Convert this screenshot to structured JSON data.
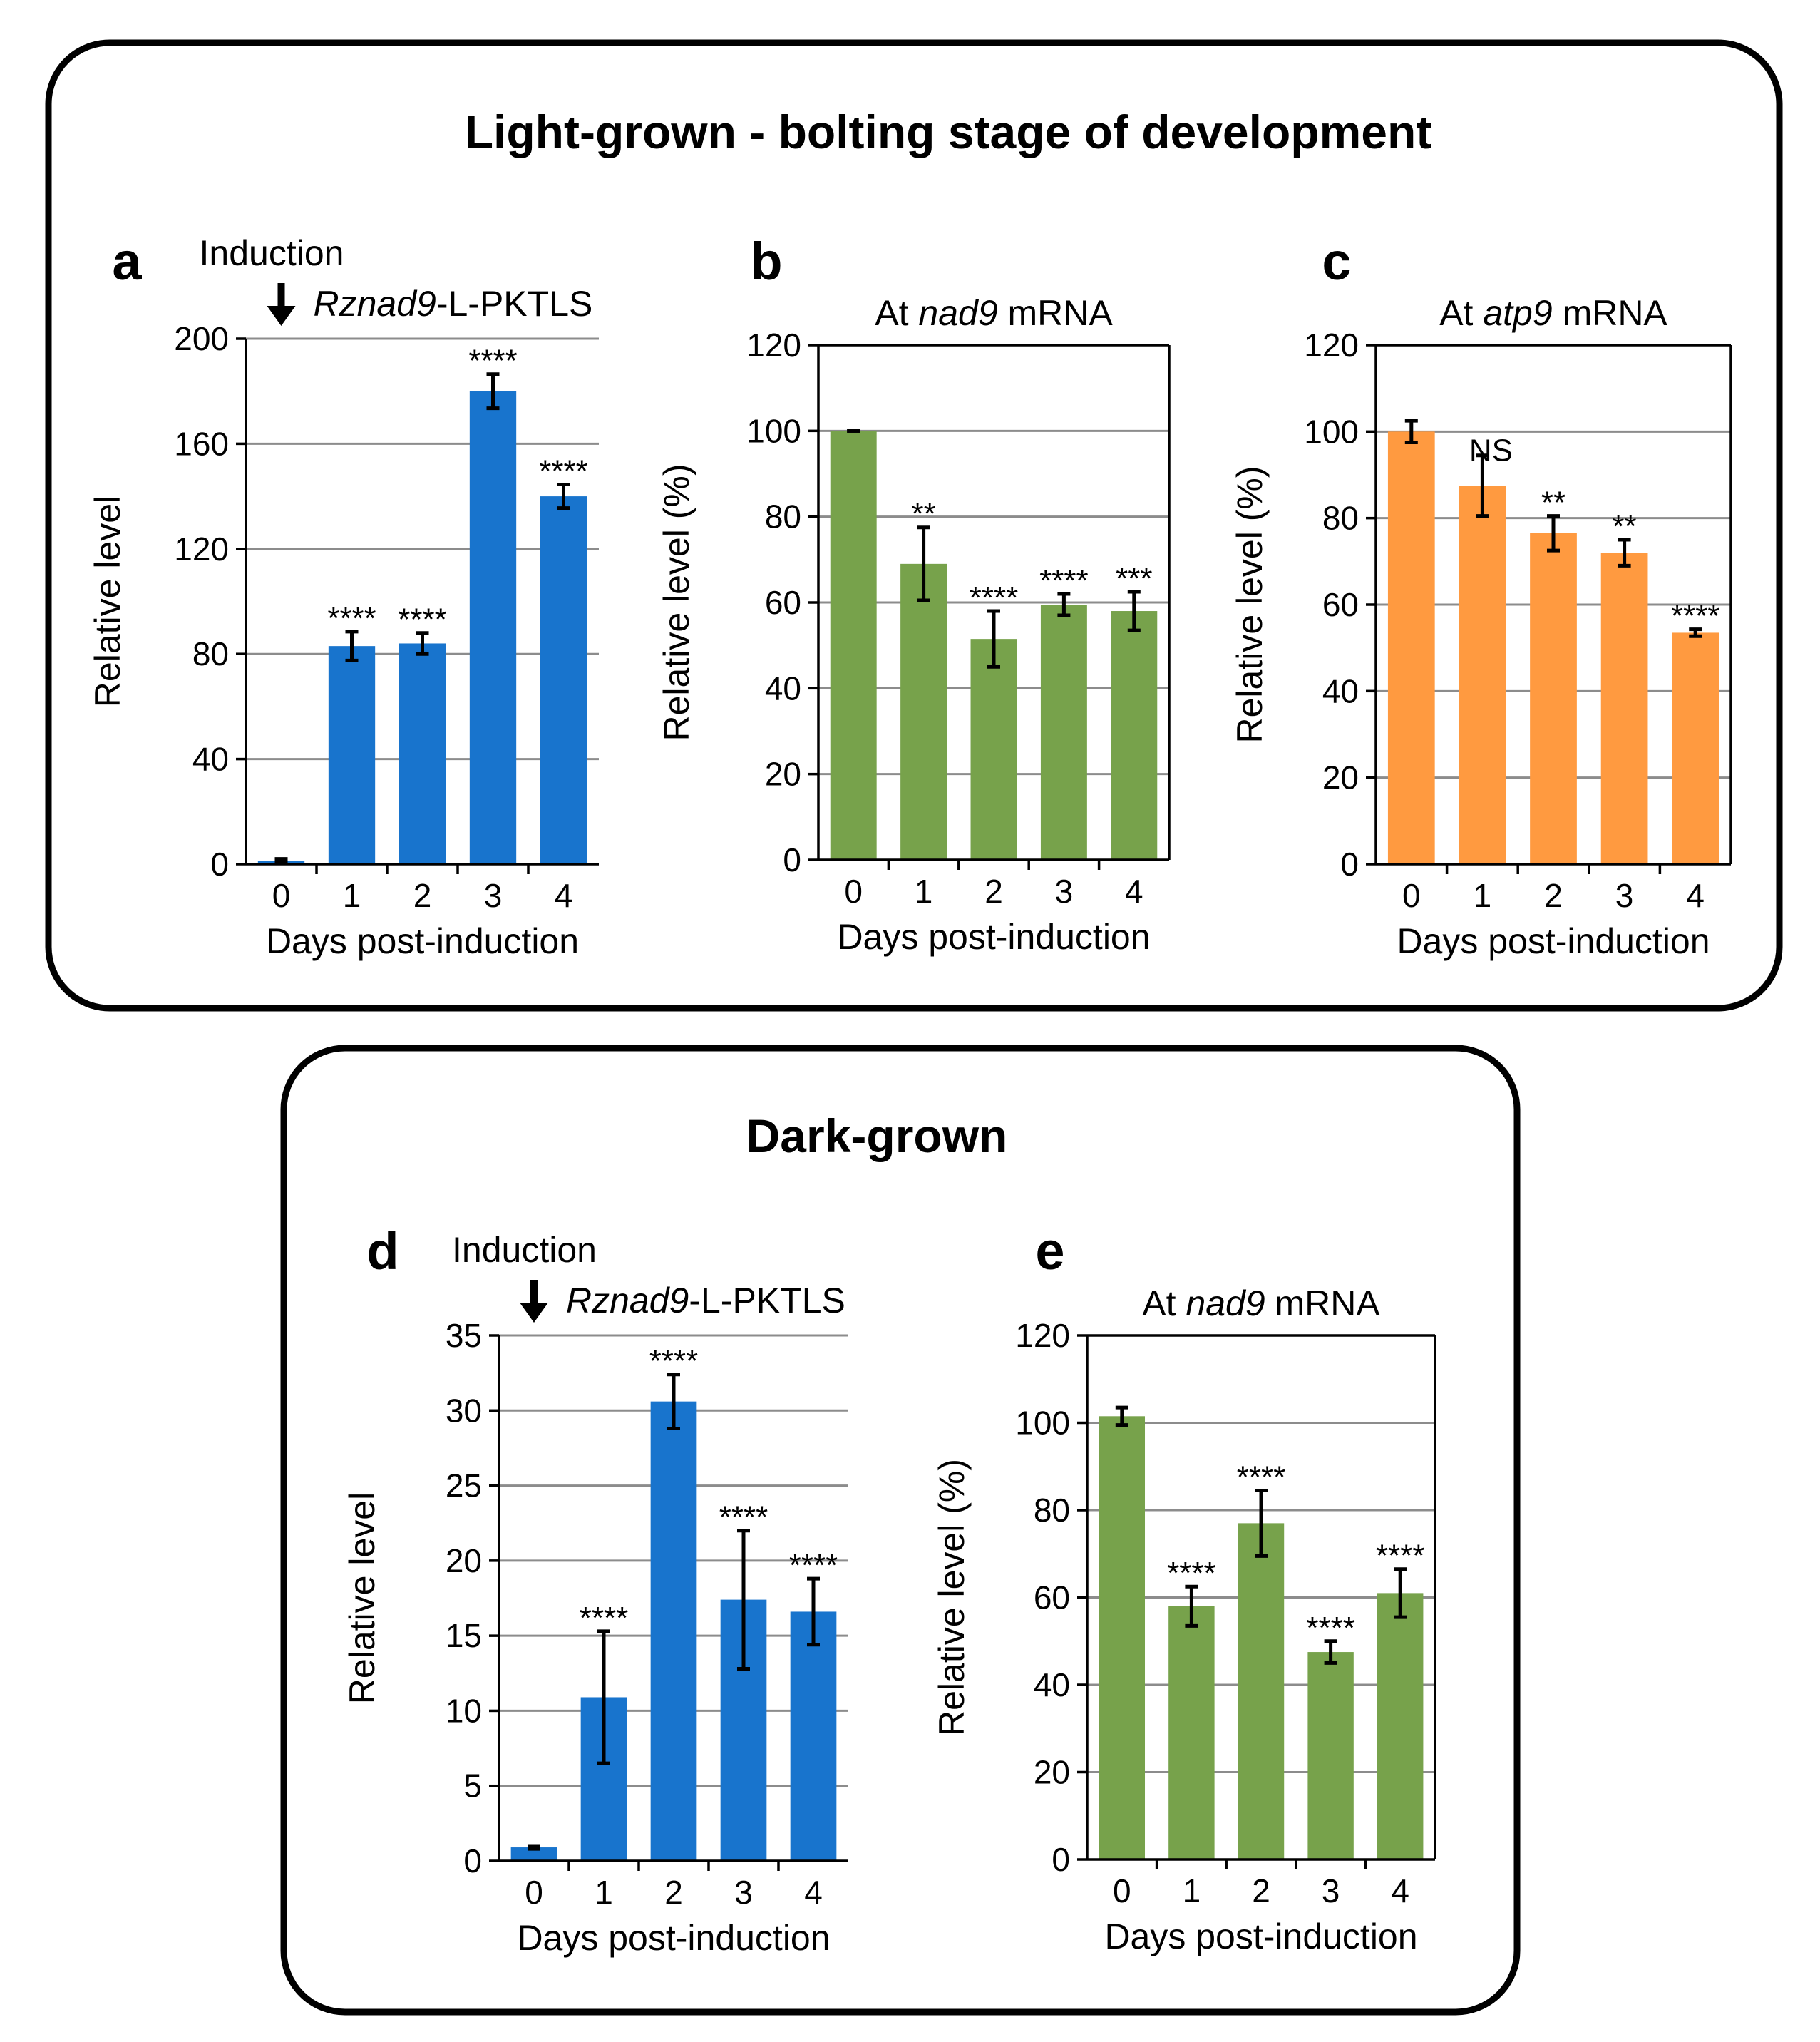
{
  "sections": {
    "light": {
      "title": "Light-grown - bolting stage of development"
    },
    "dark": {
      "title": "Dark-grown"
    }
  },
  "colors": {
    "blue": "#1874CD",
    "green": "#77A24B",
    "orange": "#FF9A40"
  },
  "chart_data": [
    {
      "id": "a",
      "type": "bar",
      "panel_letter": "a",
      "section": "light",
      "title": "",
      "annotation": {
        "text": "Induction",
        "construct_italic": "Rznad9",
        "construct_suffix": "-L-PKTLS",
        "arrow_at_category": "0"
      },
      "xlabel": "Days post-induction",
      "ylabel": "Relative level",
      "categories": [
        "0",
        "1",
        "2",
        "3",
        "4"
      ],
      "values": [
        1.2,
        83,
        84,
        180,
        140
      ],
      "errors": [
        0.8,
        5.5,
        4,
        6.5,
        4.5
      ],
      "significance": [
        "",
        "****",
        "****",
        "****",
        "****"
      ],
      "ylim": [
        0,
        200
      ],
      "yticks": [
        0,
        40,
        80,
        120,
        160,
        200
      ],
      "color": "blue"
    },
    {
      "id": "b",
      "type": "bar",
      "panel_letter": "b",
      "section": "light",
      "title": "At nad9 mRNA",
      "title_pre": "At ",
      "title_italic": "nad9",
      "title_post": " mRNA",
      "xlabel": "Days post-induction",
      "ylabel": "Relative level (%)",
      "categories": [
        "0",
        "1",
        "2",
        "3",
        "4"
      ],
      "values": [
        100,
        69,
        51.5,
        59.5,
        58
      ],
      "errors": [
        0,
        8.5,
        6.5,
        2.5,
        4.5
      ],
      "significance": [
        "",
        "**",
        "****",
        "****",
        "***"
      ],
      "ylim": [
        0,
        120
      ],
      "yticks": [
        0,
        20,
        40,
        60,
        80,
        100,
        120
      ],
      "color": "green"
    },
    {
      "id": "c",
      "type": "bar",
      "panel_letter": "c",
      "section": "light",
      "title": "At atp9 mRNA",
      "title_pre": "At ",
      "title_italic": "atp9",
      "title_post": " mRNA",
      "xlabel": "Days post-induction",
      "ylabel": "Relative level (%)",
      "categories": [
        "0",
        "1",
        "2",
        "3",
        "4"
      ],
      "values": [
        100,
        87.5,
        76.5,
        72,
        53.5
      ],
      "errors": [
        2.5,
        7,
        4,
        3,
        0.8
      ],
      "significance": [
        "",
        "NS",
        "**",
        "**",
        "****"
      ],
      "ylim": [
        0,
        120
      ],
      "yticks": [
        0,
        20,
        40,
        60,
        80,
        100,
        120
      ],
      "color": "orange"
    },
    {
      "id": "d",
      "type": "bar",
      "panel_letter": "d",
      "section": "dark",
      "title": "",
      "annotation": {
        "text": "Induction",
        "construct_italic": "Rznad9",
        "construct_suffix": "-L-PKTLS",
        "arrow_at_category": "0"
      },
      "xlabel": "Days post-induction",
      "ylabel": "Relative level",
      "categories": [
        "0",
        "1",
        "2",
        "3",
        "4"
      ],
      "values": [
        0.9,
        10.9,
        30.6,
        17.4,
        16.6
      ],
      "errors": [
        0.1,
        4.4,
        1.8,
        4.6,
        2.2
      ],
      "significance": [
        "",
        "****",
        "****",
        "****",
        "****"
      ],
      "ylim": [
        0,
        35
      ],
      "yticks": [
        0,
        5,
        10,
        15,
        20,
        25,
        30,
        35
      ],
      "color": "blue"
    },
    {
      "id": "e",
      "type": "bar",
      "panel_letter": "e",
      "section": "dark",
      "title": "At nad9 mRNA",
      "title_pre": "At ",
      "title_italic": "nad9",
      "title_post": " mRNA",
      "xlabel": "Days post-induction",
      "ylabel": "Relative level (%)",
      "categories": [
        "0",
        "1",
        "2",
        "3",
        "4"
      ],
      "values": [
        101.5,
        58,
        77,
        47.5,
        61
      ],
      "errors": [
        2,
        4.5,
        7.5,
        2.5,
        5.5
      ],
      "significance": [
        "",
        "****",
        "****",
        "****",
        "****"
      ],
      "ylim": [
        0,
        120
      ],
      "yticks": [
        0,
        20,
        40,
        60,
        80,
        100,
        120
      ],
      "color": "green"
    }
  ]
}
